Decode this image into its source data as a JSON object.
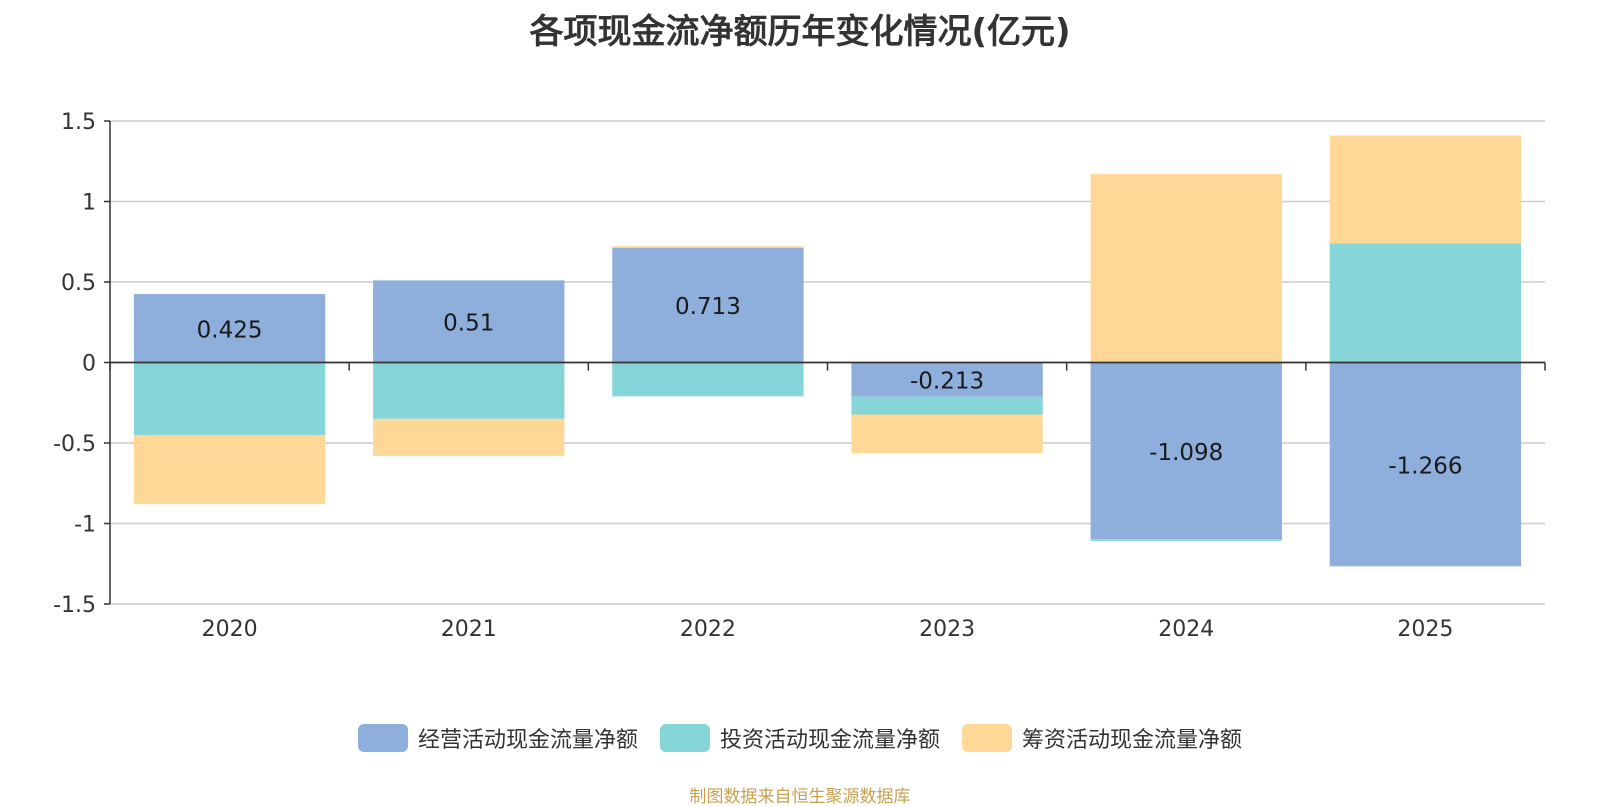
{
  "chart_data": {
    "type": "bar",
    "stacked": true,
    "title": "各项现金流净额历年变化情况(亿元)",
    "categories": [
      "2020",
      "2021",
      "2022",
      "2023",
      "2024",
      "2025"
    ],
    "ylim": [
      -1.5,
      1.5
    ],
    "yticks": [
      1.5,
      1,
      0.5,
      0,
      -0.5,
      -1,
      -1.5
    ],
    "ytick_labels": [
      "1.5",
      "1",
      "0.5",
      "0",
      "-0.5",
      "-1",
      "-1.5"
    ],
    "grid": true,
    "legend_position": "bottom",
    "series": [
      {
        "name": "经营活动现金流量净额",
        "color": "#8eaedb",
        "values": [
          0.425,
          0.51,
          0.713,
          -0.213,
          -1.098,
          -1.266
        ],
        "labels": [
          "0.425",
          "0.51",
          "0.713",
          "-0.213",
          "-1.098",
          "-1.266"
        ]
      },
      {
        "name": "投资活动现金流量净额",
        "color": "#86d5d8",
        "values": [
          -0.45,
          -0.35,
          -0.21,
          -0.11,
          -0.01,
          0.74
        ]
      },
      {
        "name": "筹资活动现金流量净额",
        "color": "#ffd898",
        "values": [
          -0.43,
          -0.23,
          0.01,
          -0.24,
          1.17,
          0.67
        ]
      }
    ]
  },
  "source": "制图数据来自恒生聚源数据库"
}
